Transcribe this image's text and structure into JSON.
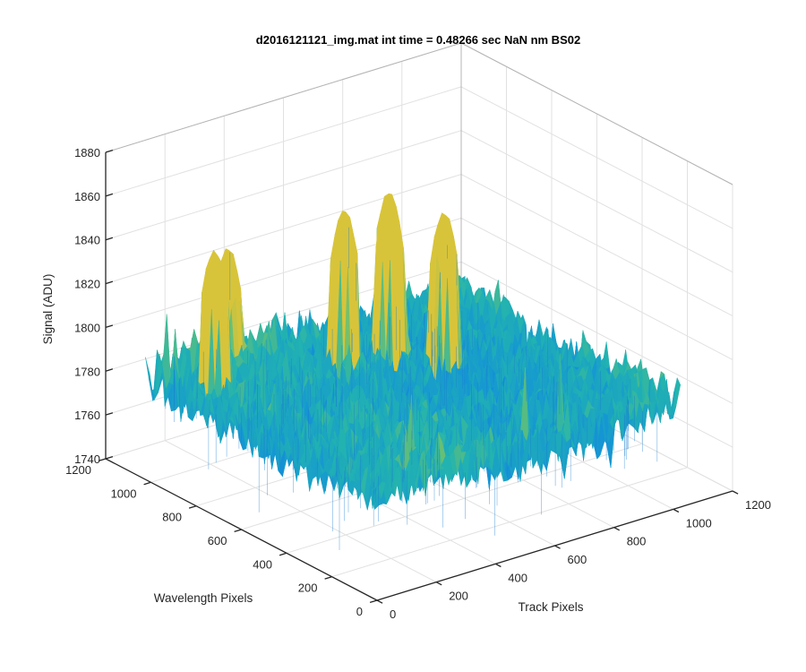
{
  "chart_data": {
    "type": "surface",
    "title": "d2016121121_img.mat int time = 0.48266 sec  NaN nm BS02",
    "xlabel": "Track Pixels",
    "ylabel": "Wavelength Pixels",
    "zlabel": "Signal (ADU)",
    "xlim": [
      0,
      1200
    ],
    "ylim": [
      0,
      1200
    ],
    "zlim": [
      1740,
      1880
    ],
    "x_ticks": [
      "0",
      "200",
      "400",
      "600",
      "800",
      "1000",
      "1200"
    ],
    "y_ticks": [
      "0",
      "200",
      "400",
      "600",
      "800",
      "1000",
      "1200"
    ],
    "z_ticks": [
      "1740",
      "1760",
      "1780",
      "1800",
      "1820",
      "1840",
      "1860",
      "1880"
    ],
    "grid": true,
    "colormap": "parula",
    "colors": {
      "low": "#0d6cd8",
      "mid": "#22b3b0",
      "high": "#d8c43a"
    },
    "data_extent": {
      "x": [
        0,
        1024
      ],
      "y": [
        0,
        1024
      ]
    },
    "z_typical_range": [
      1770,
      1800
    ],
    "z_min_approx": 1745,
    "z_max_approx": 1860,
    "peaks": [
      {
        "x": 100,
        "y": 850,
        "z": 1850
      },
      {
        "x": 230,
        "y": 960,
        "z": 1840
      },
      {
        "x": 470,
        "y": 760,
        "z": 1858
      },
      {
        "x": 620,
        "y": 760,
        "z": 1860
      },
      {
        "x": 700,
        "y": 620,
        "z": 1855
      }
    ]
  }
}
